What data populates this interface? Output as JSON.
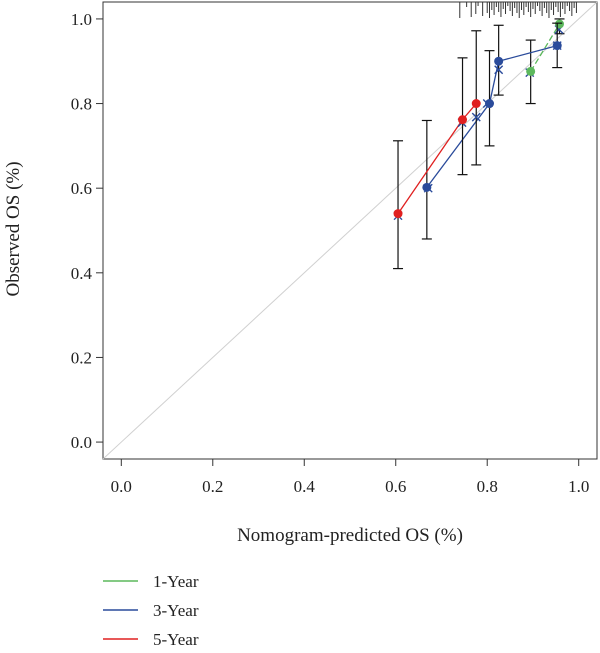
{
  "chart_data": {
    "type": "scatter",
    "title": "",
    "xlabel": "Nomogram-predicted OS (%)",
    "ylabel": "Observed OS (%)",
    "xlim": [
      -0.04,
      1.04
    ],
    "ylim": [
      -0.04,
      1.04
    ],
    "xticks": [
      "0.0",
      "0.2",
      "0.4",
      "0.6",
      "0.8",
      "1.0"
    ],
    "yticks": [
      "0.0",
      "0.2",
      "0.4",
      "0.6",
      "0.8",
      "1.0"
    ],
    "reference_line": "diagonal y = x",
    "legend_position": "bottom-left",
    "series": [
      {
        "name": "1-Year",
        "color": "#5cb85c",
        "points": [
          {
            "x": 0.895,
            "y": 0.876,
            "lo": 0.8,
            "hi": 0.95,
            "x_cross": 0.893,
            "y_cross": 0.873
          },
          {
            "x": 0.958,
            "y": 0.988,
            "lo": 0.965,
            "hi": 1.0,
            "x_cross": 0.957,
            "y_cross": 0.975
          }
        ]
      },
      {
        "name": "3-Year",
        "color": "#2a4b9b",
        "points": [
          {
            "x": 0.668,
            "y": 0.602,
            "lo": 0.48,
            "hi": 0.76,
            "x_cross": 0.671,
            "y_cross": 0.6
          },
          {
            "x": 0.805,
            "y": 0.8,
            "lo": 0.7,
            "hi": 0.925,
            "x_cross": 0.8,
            "y_cross": 0.8
          },
          {
            "x": 0.825,
            "y": 0.9,
            "lo": 0.82,
            "hi": 0.985,
            "x_cross": 0.825,
            "y_cross": 0.88
          },
          {
            "x": 0.953,
            "y": 0.937,
            "lo": 0.885,
            "hi": 0.99,
            "x_cross": 0.953,
            "y_cross": 0.937
          }
        ]
      },
      {
        "name": "5-Year",
        "color": "#e02020",
        "points": [
          {
            "x": 0.605,
            "y": 0.54,
            "lo": 0.41,
            "hi": 0.712,
            "x_cross": 0.605,
            "y_cross": 0.535
          },
          {
            "x": 0.746,
            "y": 0.762,
            "lo": 0.632,
            "hi": 0.908,
            "x_cross": 0.745,
            "y_cross": 0.755
          },
          {
            "x": 0.776,
            "y": 0.8,
            "lo": 0.655,
            "hi": 0.972,
            "x_cross": 0.776,
            "y_cross": 0.768
          }
        ]
      }
    ],
    "rug_x": [
      0.74,
      0.755,
      0.765,
      0.775,
      0.78,
      0.79,
      0.8,
      0.805,
      0.81,
      0.815,
      0.82,
      0.825,
      0.83,
      0.835,
      0.84,
      0.845,
      0.85,
      0.855,
      0.86,
      0.865,
      0.87,
      0.875,
      0.88,
      0.885,
      0.89,
      0.895,
      0.9,
      0.905,
      0.91,
      0.915,
      0.92,
      0.925,
      0.93,
      0.935,
      0.94,
      0.945,
      0.95,
      0.955,
      0.96,
      0.965,
      0.97,
      0.975,
      0.98,
      0.985,
      0.99,
      0.995
    ]
  }
}
